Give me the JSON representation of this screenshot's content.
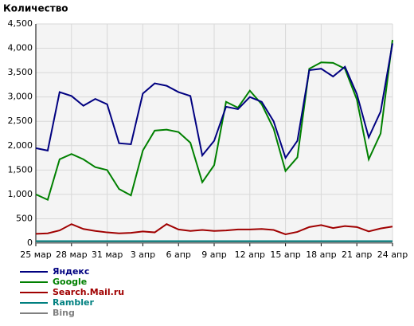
{
  "chart_data": {
    "type": "line",
    "title": "Количество",
    "categories": [
      "25 мар",
      null,
      null,
      "28 мар",
      null,
      null,
      "31 мар",
      null,
      null,
      "3 апр",
      null,
      null,
      "6 апр",
      null,
      null,
      "9 апр",
      null,
      null,
      "12 апр",
      null,
      null,
      "15 апр",
      null,
      null,
      "18 апр",
      null,
      null,
      "21 апр",
      null,
      null,
      "24 апр"
    ],
    "series": [
      {
        "name": "Яндекс",
        "color": "#000080",
        "values": [
          1950,
          1900,
          3100,
          3020,
          2820,
          2960,
          2850,
          2050,
          2030,
          3070,
          3280,
          3230,
          3100,
          3020,
          1800,
          2100,
          2800,
          2750,
          3000,
          2900,
          2500,
          1750,
          2100,
          3550,
          3580,
          3420,
          3620,
          3060,
          2170,
          2700,
          4100
        ]
      },
      {
        "name": "Google",
        "color": "#008000",
        "values": [
          1000,
          890,
          1720,
          1830,
          1720,
          1560,
          1500,
          1110,
          980,
          1900,
          2310,
          2330,
          2280,
          2060,
          1250,
          1600,
          2900,
          2780,
          3130,
          2850,
          2350,
          1480,
          1760,
          3580,
          3710,
          3700,
          3580,
          2950,
          1720,
          2250,
          4170
        ]
      },
      {
        "name": "Search.Mail.ru",
        "color": "#a00000",
        "values": [
          190,
          200,
          260,
          390,
          290,
          250,
          220,
          200,
          210,
          240,
          220,
          390,
          280,
          250,
          270,
          250,
          260,
          280,
          280,
          290,
          270,
          180,
          230,
          330,
          370,
          310,
          350,
          330,
          240,
          300,
          340
        ]
      },
      {
        "name": "Rambler",
        "color": "#008080",
        "values": [
          40,
          40,
          40,
          40,
          40,
          40,
          40,
          40,
          40,
          40,
          40,
          40,
          40,
          40,
          40,
          40,
          40,
          40,
          40,
          40,
          40,
          40,
          40,
          40,
          40,
          40,
          40,
          40,
          40,
          40,
          40
        ]
      },
      {
        "name": "Bing",
        "color": "#808080",
        "values": [
          10,
          10,
          10,
          10,
          10,
          10,
          10,
          10,
          10,
          10,
          10,
          10,
          10,
          10,
          10,
          10,
          10,
          10,
          10,
          10,
          10,
          10,
          10,
          10,
          10,
          10,
          10,
          10,
          10,
          10,
          10
        ]
      }
    ],
    "ylim": [
      0,
      4500
    ],
    "yticks": [
      0,
      500,
      {
        "value": 1000,
        "label": "1,000"
      },
      {
        "value": 1500,
        "label": "1,500"
      },
      {
        "value": 2000,
        "label": "2,000"
      },
      {
        "value": 2500,
        "label": "2,500"
      },
      {
        "value": 3000,
        "label": "3,000"
      },
      {
        "value": 3500,
        "label": "3,500"
      },
      {
        "value": 4000,
        "label": "4,000"
      },
      {
        "value": 4500,
        "label": "4,500"
      }
    ],
    "grid": true
  }
}
